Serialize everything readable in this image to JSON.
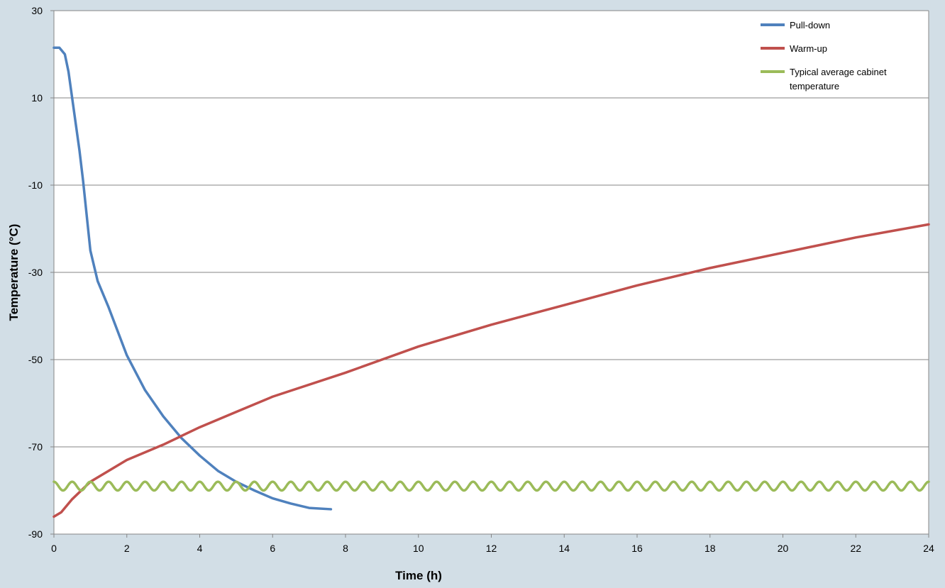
{
  "chart_data": {
    "type": "line",
    "title": "",
    "xlabel": "Time (h)",
    "ylabel": "Temperature (°C)",
    "xlim": [
      0,
      24
    ],
    "ylim": [
      -90,
      30
    ],
    "x_ticks": [
      0,
      2,
      4,
      6,
      8,
      10,
      12,
      14,
      16,
      18,
      20,
      22,
      24
    ],
    "y_ticks": [
      30,
      10,
      -10,
      -30,
      -50,
      -70,
      -90
    ],
    "grid": "horizontal",
    "legend_position": "top-right",
    "series": [
      {
        "name": "Pull-down",
        "color": "#4f81bd",
        "points": [
          [
            0,
            21.5
          ],
          [
            0.15,
            21.5
          ],
          [
            0.3,
            20
          ],
          [
            0.4,
            16
          ],
          [
            0.5,
            10
          ],
          [
            0.6,
            4
          ],
          [
            0.7,
            -2
          ],
          [
            0.8,
            -9
          ],
          [
            0.9,
            -17
          ],
          [
            1.0,
            -25
          ],
          [
            1.2,
            -32
          ],
          [
            1.5,
            -38
          ],
          [
            2.0,
            -49
          ],
          [
            2.5,
            -57
          ],
          [
            3.0,
            -63
          ],
          [
            3.5,
            -68
          ],
          [
            4.0,
            -72
          ],
          [
            4.5,
            -75.5
          ],
          [
            5.0,
            -78
          ],
          [
            5.5,
            -80
          ],
          [
            6.0,
            -81.8
          ],
          [
            6.5,
            -83
          ],
          [
            7.0,
            -84
          ],
          [
            7.6,
            -84.3
          ]
        ]
      },
      {
        "name": "Warm-up",
        "color": "#c0504d",
        "points": [
          [
            0,
            -86
          ],
          [
            0.2,
            -85
          ],
          [
            0.5,
            -82
          ],
          [
            1.0,
            -78
          ],
          [
            1.5,
            -75.5
          ],
          [
            2.0,
            -73
          ],
          [
            3.0,
            -69.5
          ],
          [
            4.0,
            -65.5
          ],
          [
            5.0,
            -62
          ],
          [
            6.0,
            -58.5
          ],
          [
            8.0,
            -53
          ],
          [
            10.0,
            -47
          ],
          [
            12.0,
            -42
          ],
          [
            14.0,
            -37.5
          ],
          [
            16.0,
            -33
          ],
          [
            18.0,
            -29
          ],
          [
            20.0,
            -25.5
          ],
          [
            22.0,
            -22
          ],
          [
            24.0,
            -19
          ]
        ]
      },
      {
        "name": "Typical average cabinet temperature",
        "color": "#9bbb59",
        "mean": -79,
        "amplitude": 1,
        "period_h": 0.5,
        "x_range": [
          0,
          24
        ]
      }
    ]
  },
  "legend": {
    "items": [
      {
        "label_lines": [
          "Pull-down"
        ],
        "color": "#4f81bd"
      },
      {
        "label_lines": [
          "Warm-up"
        ],
        "color": "#c0504d"
      },
      {
        "label_lines": [
          "Typical average cabinet",
          "temperature"
        ],
        "color": "#9bbb59"
      }
    ]
  },
  "colors": {
    "background": "#d2dee6",
    "plot_area": "#ffffff",
    "grid": "#868686"
  }
}
